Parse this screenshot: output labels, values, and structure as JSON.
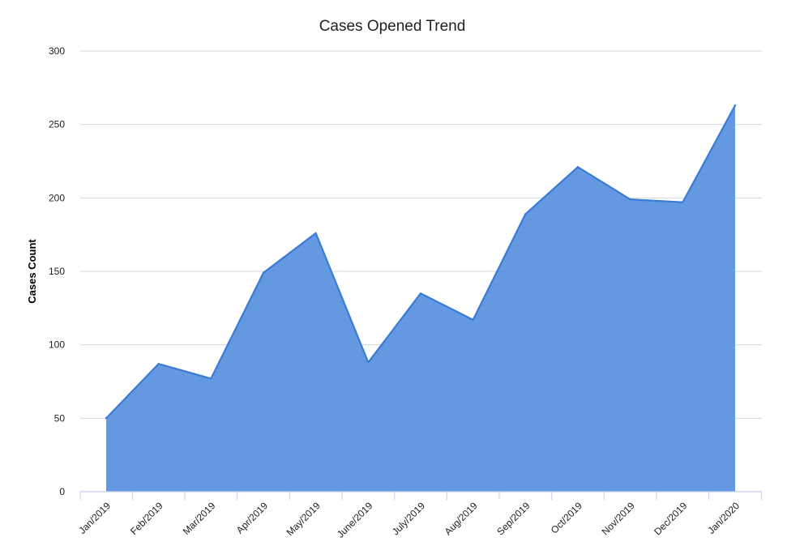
{
  "chart_data": {
    "type": "area",
    "title": "Cases Opened Trend",
    "xlabel": "",
    "ylabel": "Cases Count",
    "categories": [
      "Jan/2019",
      "Feb/2019",
      "Mar/2019",
      "Apr/2019",
      "May/2019",
      "June/2019",
      "July/2019",
      "Aug/2019",
      "Sep/2019",
      "Oct/2019",
      "Nov/2019",
      "Dec/2019",
      "Jan/2020"
    ],
    "values": [
      50,
      87,
      77,
      149,
      176,
      88,
      135,
      117,
      189,
      221,
      199,
      197,
      263
    ],
    "ylim": [
      0,
      300
    ],
    "yticks": [
      "0",
      "50",
      "100",
      "150",
      "200",
      "250",
      "300"
    ],
    "grid": true,
    "legend": "none",
    "colors": {
      "fill": "#6499e1",
      "line": "#3a7bd5",
      "grid": "#d6d6e0",
      "axis": "#c8cde8"
    }
  }
}
